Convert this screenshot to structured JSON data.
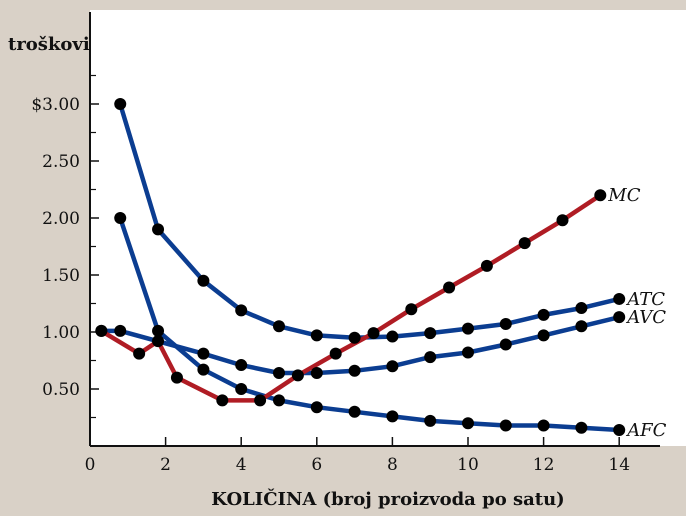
{
  "chart_data": {
    "type": "line",
    "ylabel": "troškovi",
    "xlabel": "KOLIČINA (broj proizvoda po satu)",
    "xlim": [
      0,
      15.3
    ],
    "ylim": [
      0,
      3.3
    ],
    "x_ticks": [
      0,
      2,
      4,
      6,
      8,
      10,
      12,
      14
    ],
    "x_tick_labels": [
      "0",
      "2",
      "4",
      "6",
      "8",
      "10",
      "12",
      "14"
    ],
    "y_ticks": [
      0.5,
      1.0,
      1.5,
      2.0,
      2.5,
      3.0
    ],
    "y_tick_labels": [
      "0.50",
      "1.00",
      "1.50",
      "2.00",
      "2.50",
      "$3.00"
    ],
    "y_minor_ticks": [
      0.25,
      0.75,
      1.25,
      1.75,
      2.25,
      2.75,
      3.25
    ],
    "colors": {
      "plot_background": "#ffffff",
      "page_background": "#d9d1c7"
    },
    "series": [
      {
        "name": "ATC",
        "color": "#0b3d91",
        "points": [
          [
            0.8,
            3.0
          ],
          [
            1.8,
            1.9
          ],
          [
            3.0,
            1.45
          ],
          [
            4.0,
            1.19
          ],
          [
            5.0,
            1.05
          ],
          [
            6.0,
            0.97
          ],
          [
            7.0,
            0.95
          ],
          [
            8.0,
            0.96
          ],
          [
            9.0,
            0.99
          ],
          [
            10.0,
            1.03
          ],
          [
            11.0,
            1.07
          ],
          [
            12.0,
            1.15
          ],
          [
            13.0,
            1.21
          ],
          [
            14.0,
            1.29
          ]
        ]
      },
      {
        "name": "AVC",
        "color": "#0b3d91",
        "points": [
          [
            0.3,
            1.01
          ],
          [
            0.8,
            1.01
          ],
          [
            3.0,
            0.81
          ],
          [
            4.0,
            0.71
          ],
          [
            5.0,
            0.64
          ],
          [
            6.0,
            0.64
          ],
          [
            7.0,
            0.66
          ],
          [
            8.0,
            0.7
          ],
          [
            9.0,
            0.78
          ],
          [
            10.0,
            0.82
          ],
          [
            11.0,
            0.89
          ],
          [
            12.0,
            0.97
          ],
          [
            13.0,
            1.05
          ],
          [
            14.0,
            1.13
          ]
        ]
      },
      {
        "name": "AFC",
        "color": "#0b3d91",
        "points": [
          [
            0.8,
            2.0
          ],
          [
            1.8,
            1.01
          ],
          [
            3.0,
            0.67
          ],
          [
            4.0,
            0.5
          ],
          [
            5.0,
            0.4
          ],
          [
            6.0,
            0.34
          ],
          [
            7.0,
            0.3
          ],
          [
            8.0,
            0.26
          ],
          [
            9.0,
            0.22
          ],
          [
            10.0,
            0.2
          ],
          [
            11.0,
            0.18
          ],
          [
            12.0,
            0.18
          ],
          [
            13.0,
            0.16
          ],
          [
            14.0,
            0.14
          ]
        ]
      },
      {
        "name": "MC",
        "color": "#b01c24",
        "points": [
          [
            0.3,
            1.01
          ],
          [
            1.3,
            0.81
          ],
          [
            1.8,
            0.92
          ],
          [
            2.3,
            0.6
          ],
          [
            3.5,
            0.4
          ],
          [
            4.5,
            0.4
          ],
          [
            5.5,
            0.62
          ],
          [
            6.5,
            0.81
          ],
          [
            7.5,
            0.99
          ],
          [
            8.5,
            1.2
          ],
          [
            9.5,
            1.39
          ],
          [
            10.5,
            1.58
          ],
          [
            11.5,
            1.78
          ],
          [
            12.5,
            1.98
          ],
          [
            13.5,
            2.2
          ]
        ]
      }
    ]
  }
}
